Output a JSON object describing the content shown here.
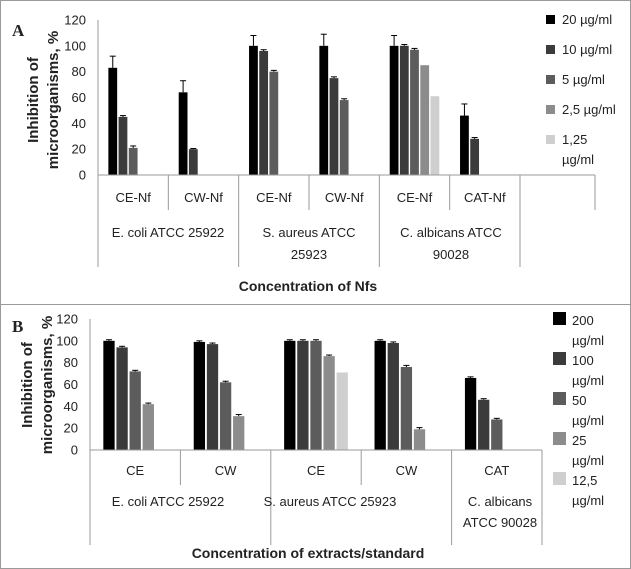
{
  "colors": [
    "#000000",
    "#3b3b3b",
    "#5c5c5c",
    "#8c8c8c",
    "#cfcfcf"
  ],
  "chart_data": [
    {
      "type": "bar",
      "panel_label": "A",
      "ylabel_line1": "Inhibition of",
      "ylabel_line2": "microorganisms, %",
      "xlabel": "Concentration of Nfs",
      "ylim": [
        0,
        120
      ],
      "yticks": [
        0,
        20,
        40,
        60,
        80,
        100,
        120
      ],
      "grid": false,
      "legend_position": "right",
      "categories": [
        "CE-Nf",
        "CW-Nf",
        "CE-Nf",
        "CW-Nf",
        "CE-Nf",
        "CAT-Nf"
      ],
      "groups": [
        {
          "line1": "E. coli ATCC 25922",
          "line2": ""
        },
        {
          "line1": "S. aureus ATCC",
          "line2": "25923"
        },
        {
          "line1": "C. albicans ATCC",
          "line2": "90028"
        }
      ],
      "series": [
        {
          "name": "20 µg/ml",
          "values": [
            83,
            64,
            100,
            100,
            100,
            46
          ],
          "errors": [
            9,
            9,
            8,
            9,
            8,
            9
          ]
        },
        {
          "name": "10 µg/ml",
          "values": [
            45,
            20,
            96,
            75,
            100,
            28
          ],
          "errors": [
            1,
            0.5,
            1,
            1,
            1,
            1
          ]
        },
        {
          "name": "5 µg/ml",
          "values": [
            21,
            null,
            80,
            58,
            97,
            null
          ],
          "errors": [
            1.5,
            null,
            1,
            1,
            1,
            null
          ]
        },
        {
          "name": "2,5 µg/ml",
          "values": [
            null,
            null,
            null,
            null,
            85,
            null
          ],
          "errors": [
            null,
            null,
            null,
            null,
            0,
            null
          ]
        },
        {
          "name": "1,25 µg/ml",
          "values": [
            null,
            null,
            null,
            null,
            61,
            null
          ],
          "errors": [
            null,
            null,
            null,
            null,
            0,
            null
          ]
        }
      ]
    },
    {
      "type": "bar",
      "panel_label": "B",
      "ylabel_line1": "Inhibition of",
      "ylabel_line2": "microorganisms, %",
      "xlabel": "Concentration of extracts/standard",
      "ylim": [
        0,
        120
      ],
      "yticks": [
        0,
        20,
        40,
        60,
        80,
        100,
        120
      ],
      "grid": false,
      "legend_position": "right",
      "categories": [
        "CE",
        "CW",
        "CE",
        "CW",
        "CAT"
      ],
      "groups": [
        {
          "line1": "E. coli ATCC 25922",
          "line2": ""
        },
        {
          "line1": "S. aureus ATCC 25923",
          "line2": ""
        },
        {
          "line1": "C. albicans",
          "line2": "ATCC 90028"
        }
      ],
      "series": [
        {
          "name": "200 µg/ml",
          "values": [
            100,
            99,
            100,
            100,
            66
          ],
          "errors": [
            1,
            1,
            1,
            1,
            1
          ]
        },
        {
          "name": "100 µg/ml",
          "values": [
            94,
            97,
            100,
            98,
            46
          ],
          "errors": [
            1,
            1,
            1,
            1,
            1
          ]
        },
        {
          "name": "50 µg/ml",
          "values": [
            72,
            62,
            100,
            76,
            28
          ],
          "errors": [
            1,
            1,
            1,
            1.5,
            1
          ]
        },
        {
          "name": "25 µg/ml",
          "values": [
            42,
            31,
            86,
            19,
            null
          ],
          "errors": [
            1,
            1.5,
            1,
            1.5,
            null
          ]
        },
        {
          "name": "12,5 µg/ml",
          "values": [
            null,
            null,
            71,
            null,
            null
          ],
          "errors": [
            null,
            null,
            0,
            null,
            null
          ]
        }
      ]
    }
  ]
}
